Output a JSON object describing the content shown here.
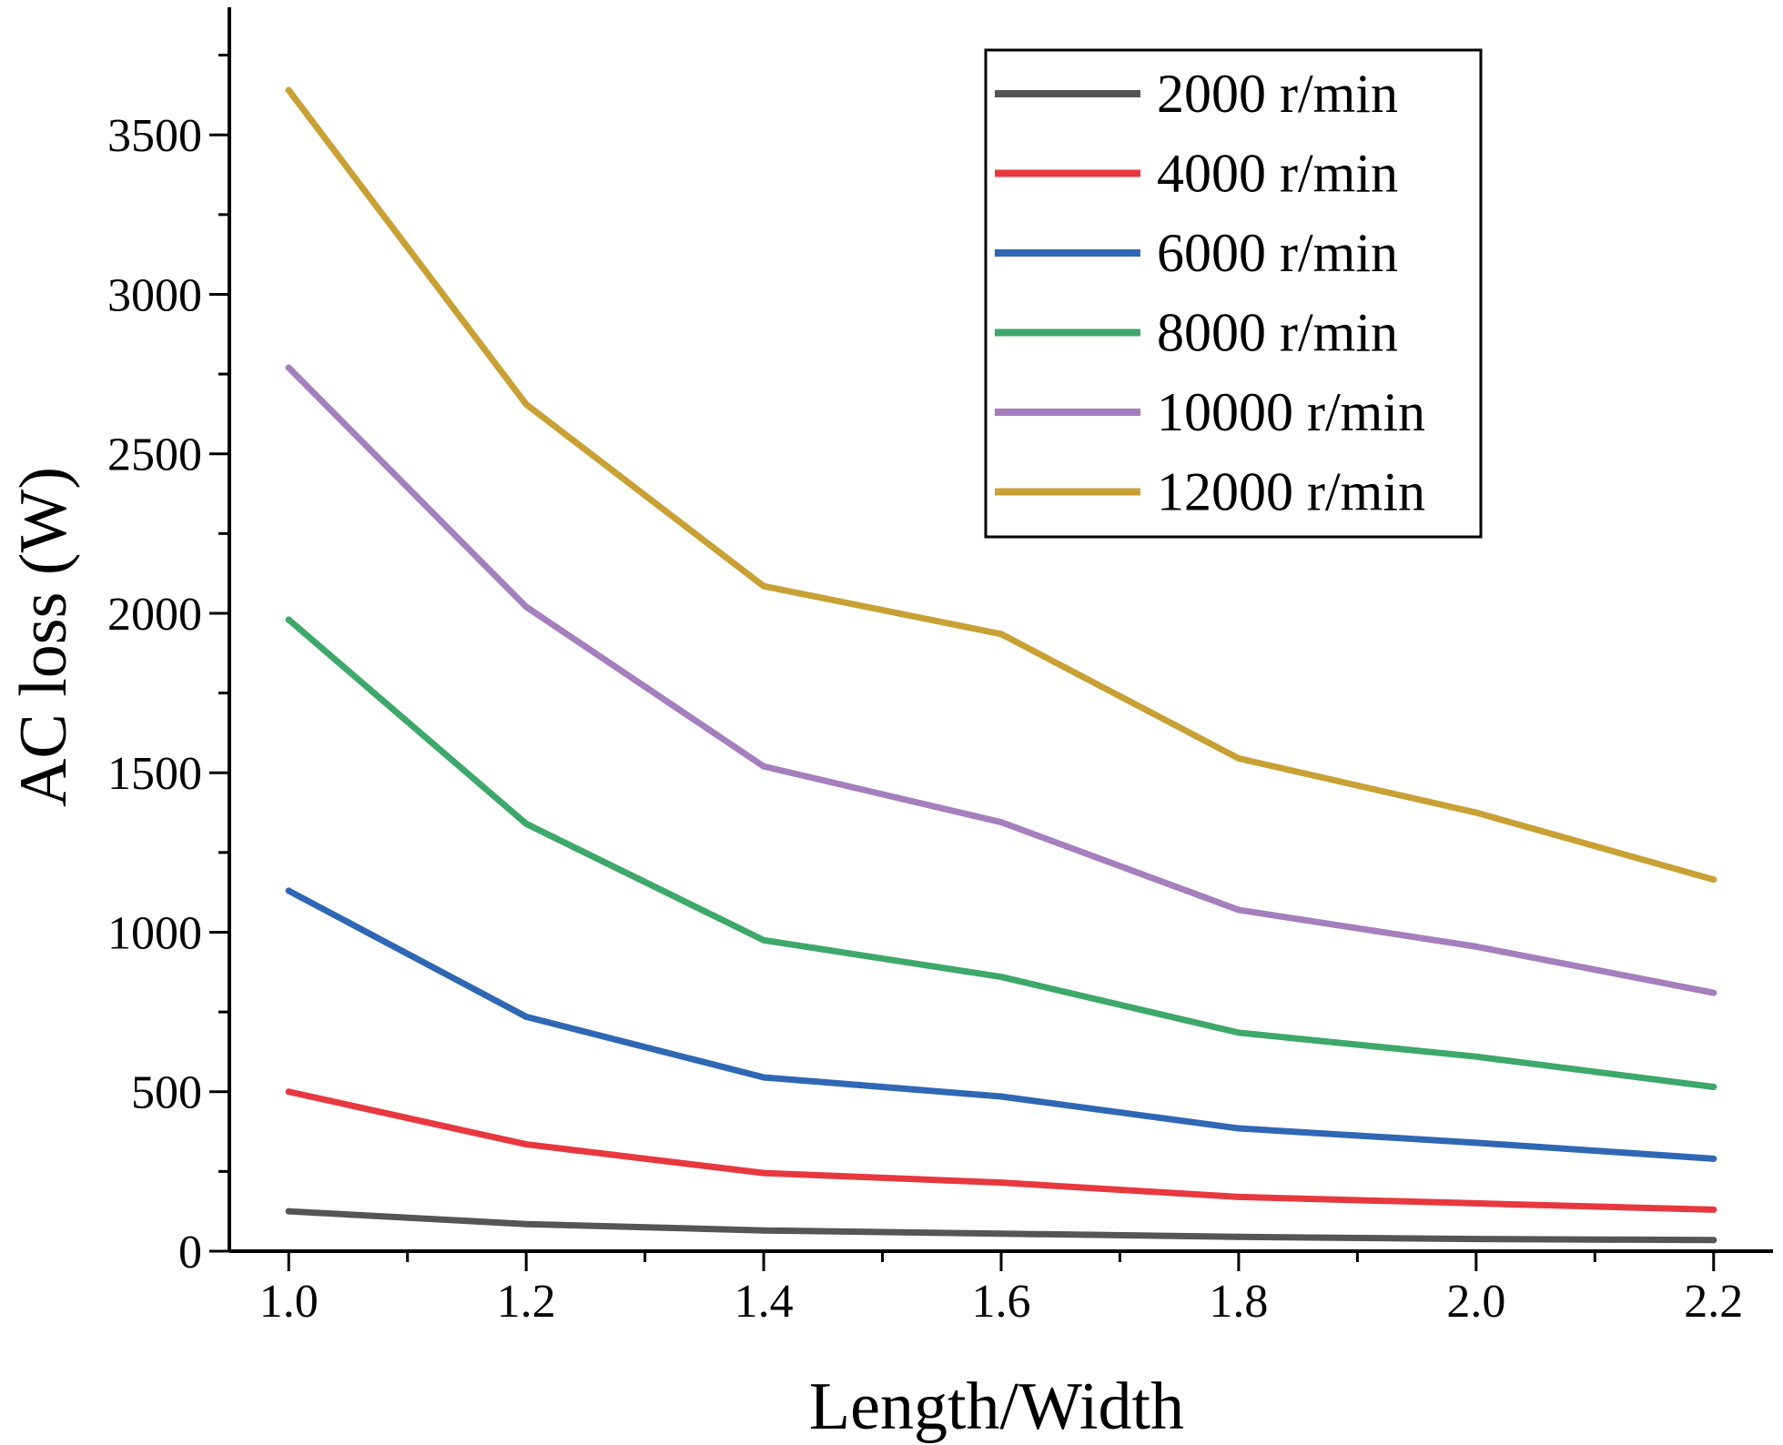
{
  "chart_data": {
    "type": "line",
    "title": "",
    "xlabel": "Length/Width",
    "ylabel": "AC loss (W)",
    "x": [
      1.0,
      1.2,
      1.4,
      1.6,
      1.8,
      2.0,
      2.2
    ],
    "xlim": [
      0.95,
      2.25
    ],
    "ylim": [
      0,
      3900
    ],
    "x_ticks": [
      "1.0",
      "1.2",
      "1.4",
      "1.6",
      "1.8",
      "2.0",
      "2.2"
    ],
    "y_ticks": [
      "0",
      "500",
      "1000",
      "1500",
      "2000",
      "2500",
      "3000",
      "3500"
    ],
    "grid": false,
    "legend_position": "top-right",
    "series": [
      {
        "name": "2000 r/min",
        "color": "#555555",
        "values": [
          125,
          85,
          65,
          55,
          45,
          38,
          35
        ]
      },
      {
        "name": "4000 r/min",
        "color": "#e8383f",
        "values": [
          500,
          335,
          245,
          215,
          170,
          150,
          130
        ]
      },
      {
        "name": "6000 r/min",
        "color": "#2f67b5",
        "values": [
          1130,
          735,
          545,
          485,
          385,
          340,
          290
        ]
      },
      {
        "name": "8000 r/min",
        "color": "#3da86a",
        "values": [
          1980,
          1340,
          975,
          860,
          685,
          610,
          515
        ]
      },
      {
        "name": "10000 r/min",
        "color": "#a57ebd",
        "values": [
          2770,
          2020,
          1520,
          1345,
          1070,
          955,
          810
        ]
      },
      {
        "name": "12000 r/min",
        "color": "#c9a033",
        "values": [
          3640,
          2655,
          2085,
          1935,
          1545,
          1375,
          1165
        ]
      }
    ]
  }
}
